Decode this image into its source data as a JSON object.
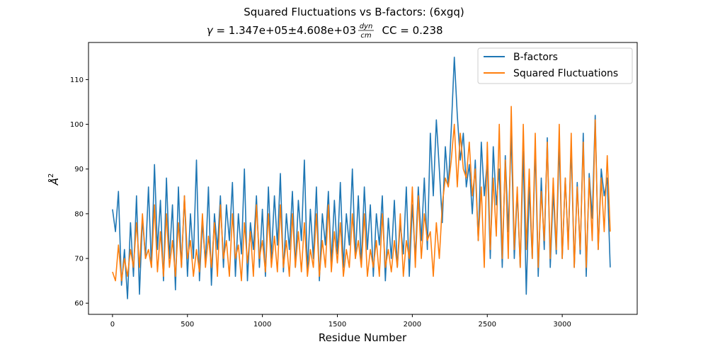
{
  "chart_data": {
    "type": "line",
    "title": "Squared Fluctuations vs B-factors:  (6xgq)",
    "subtitle": {
      "gamma": "γ",
      "eq": " = 1.347e+05±4.608e+03",
      "unit_num": "dyn",
      "unit_den": "cm",
      "cc": "  CC = 0.238"
    },
    "xlabel": "Residue Number",
    "ylabel": "Å",
    "ylabel_sup": "2",
    "xlim": [
      -160,
      3500
    ],
    "ylim": [
      57.5,
      118.3
    ],
    "xticks": [
      0,
      500,
      1000,
      1500,
      2000,
      2500,
      3000
    ],
    "yticks": [
      60,
      70,
      80,
      90,
      100,
      110
    ],
    "legend_position": "upper right",
    "grid": false,
    "colors": {
      "bfactors": "#1f77b4",
      "fluct": "#ff7f0e"
    },
    "series": [
      {
        "name": "B-factors",
        "x": [
          0,
          20,
          40,
          60,
          80,
          100,
          120,
          140,
          160,
          180,
          200,
          220,
          240,
          260,
          280,
          300,
          320,
          340,
          360,
          380,
          400,
          420,
          440,
          460,
          480,
          500,
          520,
          540,
          560,
          580,
          600,
          620,
          640,
          660,
          680,
          700,
          720,
          740,
          760,
          780,
          800,
          820,
          840,
          860,
          880,
          900,
          920,
          940,
          960,
          980,
          1000,
          1020,
          1040,
          1060,
          1080,
          1100,
          1120,
          1140,
          1160,
          1180,
          1200,
          1220,
          1240,
          1260,
          1280,
          1300,
          1320,
          1340,
          1360,
          1380,
          1400,
          1420,
          1440,
          1460,
          1480,
          1500,
          1520,
          1540,
          1560,
          1580,
          1600,
          1620,
          1640,
          1660,
          1680,
          1700,
          1720,
          1740,
          1760,
          1780,
          1800,
          1820,
          1840,
          1860,
          1880,
          1900,
          1920,
          1940,
          1960,
          1980,
          2000,
          2020,
          2040,
          2060,
          2080,
          2100,
          2120,
          2140,
          2160,
          2180,
          2200,
          2220,
          2240,
          2260,
          2280,
          2300,
          2320,
          2340,
          2360,
          2380,
          2400,
          2420,
          2440,
          2460,
          2480,
          2500,
          2520,
          2540,
          2560,
          2580,
          2600,
          2620,
          2640,
          2660,
          2680,
          2700,
          2720,
          2740,
          2760,
          2780,
          2800,
          2820,
          2840,
          2860,
          2880,
          2900,
          2920,
          2940,
          2960,
          2980,
          3000,
          3020,
          3040,
          3060,
          3080,
          3100,
          3120,
          3140,
          3160,
          3180,
          3200,
          3220,
          3240,
          3260,
          3280,
          3300,
          3320
        ],
        "y": [
          81,
          76,
          85,
          64,
          72,
          61,
          78,
          66,
          84,
          62,
          79,
          70,
          86,
          68,
          91,
          72,
          83,
          65,
          88,
          70,
          82,
          63,
          86,
          68,
          84,
          66,
          80,
          70,
          92,
          65,
          78,
          69,
          86,
          64,
          80,
          72,
          84,
          68,
          82,
          74,
          87,
          66,
          80,
          71,
          90,
          65,
          78,
          72,
          84,
          68,
          81,
          66,
          86,
          70,
          84,
          73,
          89,
          67,
          80,
          72,
          85,
          68,
          83,
          74,
          92,
          67,
          81,
          70,
          86,
          65,
          80,
          73,
          85,
          69,
          83,
          71,
          87,
          68,
          80,
          73,
          90,
          70,
          84,
          69,
          86,
          72,
          82,
          66,
          80,
          73,
          84,
          65,
          79,
          70,
          83,
          68,
          78,
          71,
          86,
          66,
          82,
          70,
          86,
          74,
          88,
          72,
          98,
          84,
          101,
          90,
          78,
          95,
          86,
          99,
          115,
          102,
          92,
          98,
          86,
          91,
          80,
          92,
          74,
          96,
          84,
          92,
          70,
          95,
          82,
          90,
          68,
          93,
          76,
          98,
          70,
          85,
          68,
          94,
          62,
          86,
          70,
          95,
          66,
          88,
          72,
          97,
          68,
          85,
          71,
          96,
          70,
          88,
          73,
          95,
          68,
          87,
          71,
          98,
          66,
          89,
          79,
          102,
          72,
          90,
          84,
          88,
          68
        ]
      },
      {
        "name": "Squared Fluctuations",
        "x": [
          0,
          20,
          40,
          60,
          80,
          100,
          120,
          140,
          160,
          180,
          200,
          220,
          240,
          260,
          280,
          300,
          320,
          340,
          360,
          380,
          400,
          420,
          440,
          460,
          480,
          500,
          520,
          540,
          560,
          580,
          600,
          620,
          640,
          660,
          680,
          700,
          720,
          740,
          760,
          780,
          800,
          820,
          840,
          860,
          880,
          900,
          920,
          940,
          960,
          980,
          1000,
          1020,
          1040,
          1060,
          1080,
          1100,
          1120,
          1140,
          1160,
          1180,
          1200,
          1220,
          1240,
          1260,
          1280,
          1300,
          1320,
          1340,
          1360,
          1380,
          1400,
          1420,
          1440,
          1460,
          1480,
          1500,
          1520,
          1540,
          1560,
          1580,
          1600,
          1620,
          1640,
          1660,
          1680,
          1700,
          1720,
          1740,
          1760,
          1780,
          1800,
          1820,
          1840,
          1860,
          1880,
          1900,
          1920,
          1940,
          1960,
          1980,
          2000,
          2020,
          2040,
          2060,
          2080,
          2100,
          2120,
          2140,
          2160,
          2180,
          2200,
          2220,
          2240,
          2260,
          2280,
          2300,
          2320,
          2340,
          2360,
          2380,
          2400,
          2420,
          2440,
          2460,
          2480,
          2500,
          2520,
          2540,
          2560,
          2580,
          2600,
          2620,
          2640,
          2660,
          2680,
          2700,
          2720,
          2740,
          2760,
          2780,
          2800,
          2820,
          2840,
          2860,
          2880,
          2900,
          2920,
          2940,
          2960,
          2980,
          3000,
          3020,
          3040,
          3060,
          3080,
          3100,
          3120,
          3140,
          3160,
          3180,
          3200,
          3220,
          3240,
          3260,
          3280,
          3300,
          3320
        ],
        "y": [
          67,
          65,
          73,
          65,
          70,
          66,
          72,
          68,
          78,
          68,
          80,
          70,
          72,
          68,
          82,
          67,
          76,
          66,
          80,
          68,
          74,
          66,
          78,
          68,
          84,
          70,
          74,
          66,
          72,
          67,
          80,
          68,
          75,
          68,
          78,
          66,
          82,
          70,
          74,
          66,
          80,
          70,
          73,
          65,
          78,
          69,
          76,
          66,
          82,
          70,
          74,
          67,
          80,
          68,
          75,
          67,
          82,
          68,
          74,
          66,
          80,
          68,
          76,
          67,
          78,
          66,
          72,
          68,
          80,
          66,
          74,
          68,
          82,
          67,
          76,
          69,
          78,
          66,
          72,
          68,
          80,
          70,
          74,
          68,
          80,
          66,
          72,
          68,
          74,
          66,
          80,
          68,
          72,
          67,
          74,
          68,
          80,
          66,
          74,
          70,
          86,
          68,
          84,
          70,
          80,
          74,
          76,
          66,
          78,
          70,
          82,
          88,
          86,
          92,
          100,
          86,
          98,
          90,
          88,
          96,
          84,
          90,
          74,
          86,
          68,
          96,
          72,
          88,
          75,
          100,
          70,
          92,
          70,
          104,
          72,
          86,
          68,
          100,
          72,
          90,
          70,
          98,
          68,
          85,
          74,
          96,
          70,
          88,
          72,
          100,
          70,
          88,
          72,
          98,
          68,
          86,
          72,
          96,
          68,
          88,
          74,
          101,
          72,
          88,
          76,
          93,
          76
        ]
      }
    ]
  }
}
